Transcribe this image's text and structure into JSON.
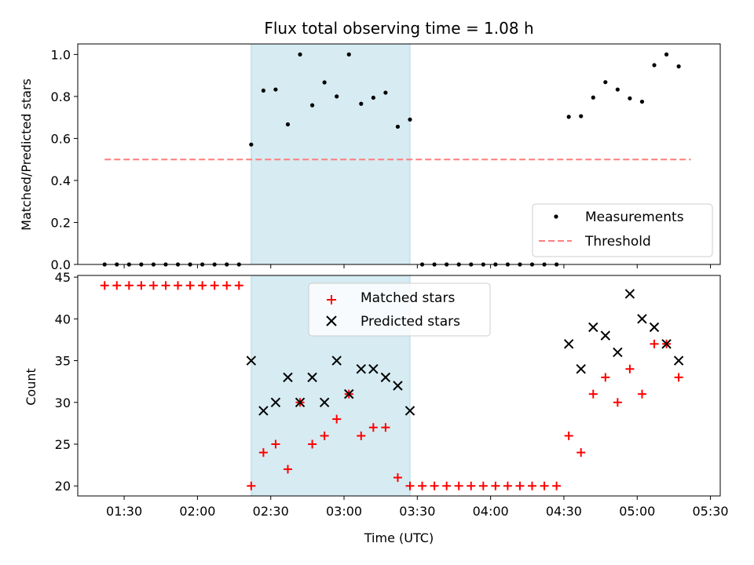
{
  "chart_data": [
    {
      "type": "scatter",
      "title": "Flux total observing time = 1.08 h",
      "xlabel": "",
      "ylabel": "Matched/Predicted stars",
      "xlim": [
        "01:11",
        "05:34"
      ],
      "ylim": [
        0,
        1.05
      ],
      "yticks": [
        "0.0",
        "0.2",
        "0.4",
        "0.6",
        "0.8",
        "1.0"
      ],
      "shaded_span": [
        "02:22",
        "03:27"
      ],
      "legend": {
        "position": "lower-right",
        "entries": [
          "Measurements",
          "Threshold"
        ]
      },
      "threshold": {
        "name": "Threshold",
        "value": 0.5,
        "x_range": [
          "01:22",
          "05:22"
        ],
        "color": "#ff7f7f"
      },
      "series": [
        {
          "name": "Measurements",
          "color": "#000000",
          "points": [
            [
              "01:22",
              0
            ],
            [
              "01:27",
              0
            ],
            [
              "01:32",
              0
            ],
            [
              "01:37",
              0
            ],
            [
              "01:42",
              0
            ],
            [
              "01:47",
              0
            ],
            [
              "01:52",
              0
            ],
            [
              "01:57",
              0
            ],
            [
              "02:02",
              0
            ],
            [
              "02:07",
              0
            ],
            [
              "02:12",
              0
            ],
            [
              "02:17",
              0
            ],
            [
              "02:22",
              0.571
            ],
            [
              "02:27",
              0.828
            ],
            [
              "02:32",
              0.833
            ],
            [
              "02:37",
              0.667
            ],
            [
              "02:42",
              1.0
            ],
            [
              "02:47",
              0.758
            ],
            [
              "02:52",
              0.867
            ],
            [
              "02:57",
              0.8
            ],
            [
              "03:02",
              1.0
            ],
            [
              "03:07",
              0.765
            ],
            [
              "03:12",
              0.794
            ],
            [
              "03:17",
              0.818
            ],
            [
              "03:22",
              0.656
            ],
            [
              "03:27",
              0.69
            ],
            [
              "03:32",
              0
            ],
            [
              "03:37",
              0
            ],
            [
              "03:42",
              0
            ],
            [
              "03:47",
              0
            ],
            [
              "03:52",
              0
            ],
            [
              "03:57",
              0
            ],
            [
              "04:02",
              0
            ],
            [
              "04:07",
              0
            ],
            [
              "04:12",
              0
            ],
            [
              "04:17",
              0
            ],
            [
              "04:22",
              0
            ],
            [
              "04:27",
              0
            ],
            [
              "04:32",
              0.703
            ],
            [
              "04:37",
              0.706
            ],
            [
              "04:42",
              0.795
            ],
            [
              "04:47",
              0.868
            ],
            [
              "04:52",
              0.833
            ],
            [
              "04:57",
              0.791
            ],
            [
              "05:02",
              0.775
            ],
            [
              "05:07",
              0.949
            ],
            [
              "05:12",
              1.0
            ],
            [
              "05:17",
              0.943
            ]
          ]
        }
      ]
    },
    {
      "type": "scatter",
      "title": "",
      "xlabel": "Time (UTC)",
      "ylabel": "Count",
      "xlim": [
        "01:11",
        "05:34"
      ],
      "ylim": [
        18.8,
        45.2
      ],
      "yticks": [
        "20",
        "25",
        "30",
        "35",
        "40",
        "45"
      ],
      "xticks": [
        "01:30",
        "02:00",
        "02:30",
        "03:00",
        "03:30",
        "04:00",
        "04:30",
        "05:00",
        "05:30"
      ],
      "shaded_span": [
        "02:22",
        "03:27"
      ],
      "legend": {
        "position": "top-center",
        "entries": [
          "Matched stars",
          "Predicted stars"
        ]
      },
      "series": [
        {
          "name": "Matched stars",
          "marker": "plus",
          "color": "#ff0000",
          "points": [
            [
              "01:22",
              44
            ],
            [
              "01:27",
              44
            ],
            [
              "01:32",
              44
            ],
            [
              "01:37",
              44
            ],
            [
              "01:42",
              44
            ],
            [
              "01:47",
              44
            ],
            [
              "01:52",
              44
            ],
            [
              "01:57",
              44
            ],
            [
              "02:02",
              44
            ],
            [
              "02:07",
              44
            ],
            [
              "02:12",
              44
            ],
            [
              "02:17",
              44
            ],
            [
              "02:22",
              20
            ],
            [
              "02:27",
              24
            ],
            [
              "02:32",
              25
            ],
            [
              "02:37",
              22
            ],
            [
              "02:42",
              30
            ],
            [
              "02:47",
              25
            ],
            [
              "02:52",
              26
            ],
            [
              "02:57",
              28
            ],
            [
              "03:02",
              31
            ],
            [
              "03:07",
              26
            ],
            [
              "03:12",
              27
            ],
            [
              "03:17",
              27
            ],
            [
              "03:22",
              21
            ],
            [
              "03:27",
              20
            ],
            [
              "03:32",
              20
            ],
            [
              "03:37",
              20
            ],
            [
              "03:42",
              20
            ],
            [
              "03:47",
              20
            ],
            [
              "03:52",
              20
            ],
            [
              "03:57",
              20
            ],
            [
              "04:02",
              20
            ],
            [
              "04:07",
              20
            ],
            [
              "04:12",
              20
            ],
            [
              "04:17",
              20
            ],
            [
              "04:22",
              20
            ],
            [
              "04:27",
              20
            ],
            [
              "04:32",
              26
            ],
            [
              "04:37",
              24
            ],
            [
              "04:42",
              31
            ],
            [
              "04:47",
              33
            ],
            [
              "04:52",
              30
            ],
            [
              "04:57",
              34
            ],
            [
              "05:02",
              31
            ],
            [
              "05:07",
              37
            ],
            [
              "05:12",
              37
            ],
            [
              "05:17",
              33
            ]
          ]
        },
        {
          "name": "Predicted stars",
          "marker": "x",
          "color": "#000000",
          "points": [
            [
              "02:22",
              35
            ],
            [
              "02:27",
              29
            ],
            [
              "02:32",
              30
            ],
            [
              "02:37",
              33
            ],
            [
              "02:42",
              30
            ],
            [
              "02:47",
              33
            ],
            [
              "02:52",
              30
            ],
            [
              "02:57",
              35
            ],
            [
              "03:02",
              31
            ],
            [
              "03:07",
              34
            ],
            [
              "03:12",
              34
            ],
            [
              "03:17",
              33
            ],
            [
              "03:22",
              32
            ],
            [
              "03:27",
              29
            ],
            [
              "04:32",
              37
            ],
            [
              "04:37",
              34
            ],
            [
              "04:42",
              39
            ],
            [
              "04:47",
              38
            ],
            [
              "04:52",
              36
            ],
            [
              "04:57",
              43
            ],
            [
              "05:02",
              40
            ],
            [
              "05:07",
              39
            ],
            [
              "05:12",
              37
            ],
            [
              "05:17",
              35
            ]
          ]
        }
      ]
    }
  ]
}
